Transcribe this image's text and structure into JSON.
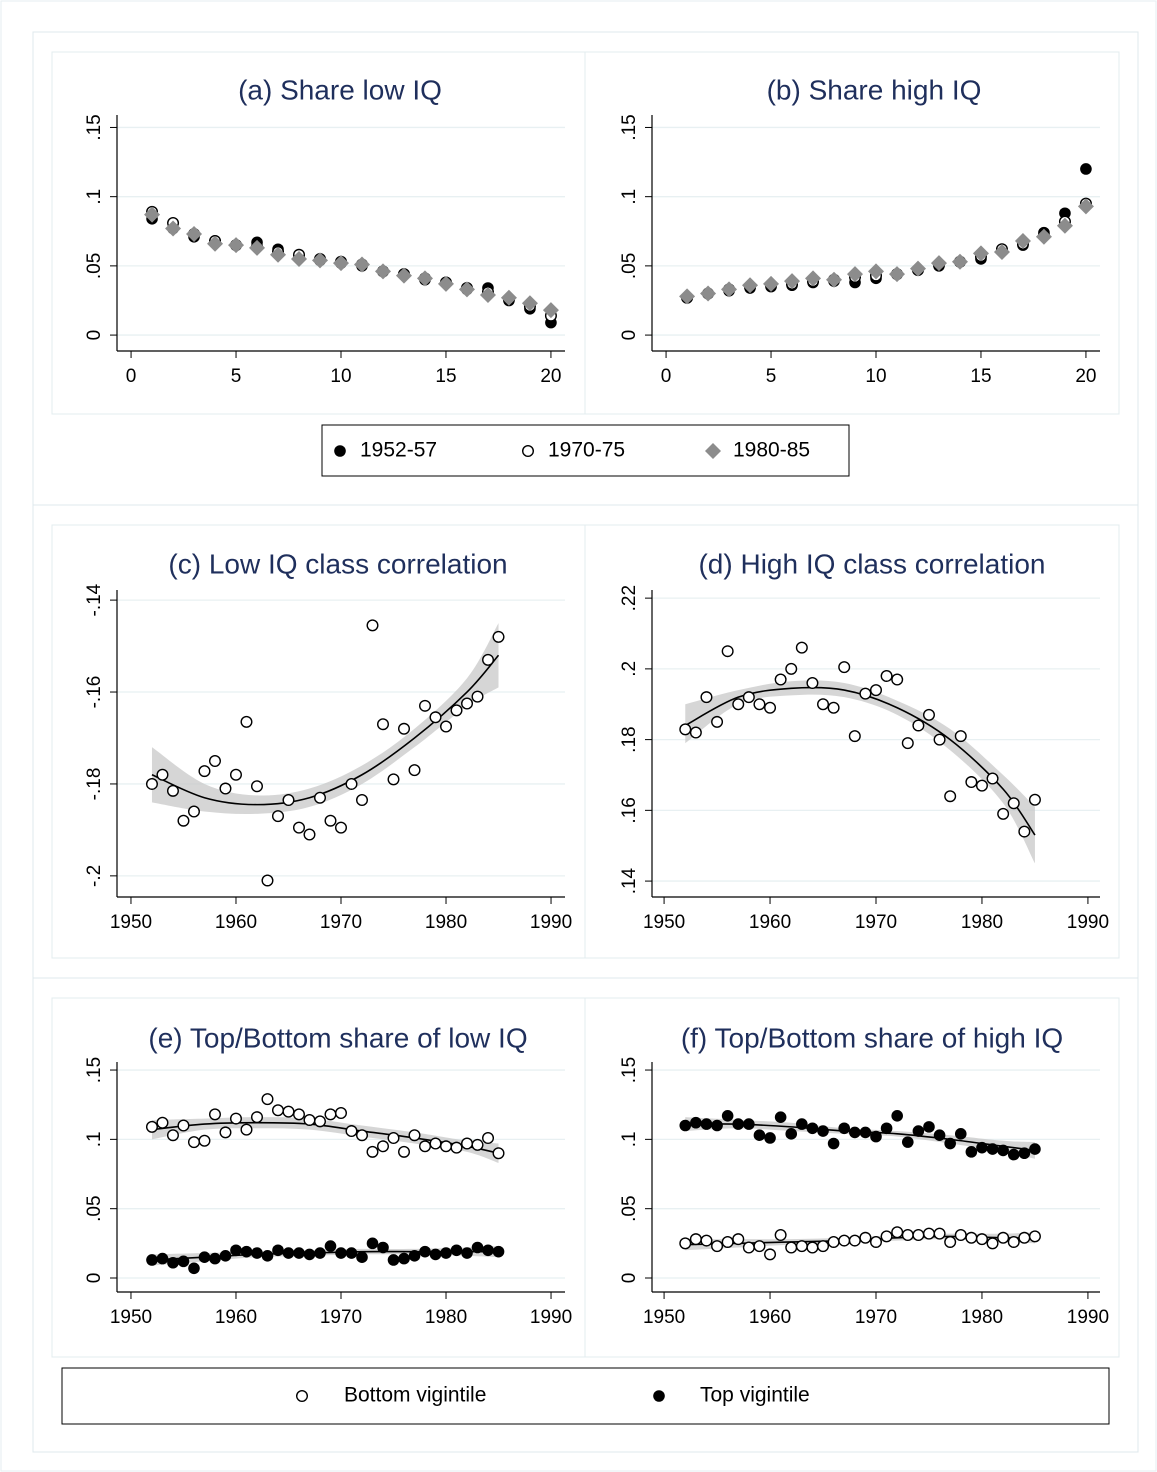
{
  "chart_data": [
    {
      "type": "scatter",
      "title": "(a) Share low IQ",
      "x": [
        1,
        2,
        3,
        4,
        5,
        6,
        7,
        8,
        9,
        10,
        11,
        12,
        13,
        14,
        15,
        16,
        17,
        18,
        19,
        20
      ],
      "series": [
        {
          "name": "1952-57",
          "color": "#000000",
          "marker": "filled-circle",
          "values": [
            0.084,
            0.077,
            0.071,
            0.068,
            0.065,
            0.067,
            0.062,
            0.057,
            0.054,
            0.052,
            0.05,
            0.046,
            0.044,
            0.04,
            0.038,
            0.033,
            0.034,
            0.025,
            0.019,
            0.009
          ]
        },
        {
          "name": "1970-75",
          "color": "#000000",
          "marker": "hollow-circle",
          "values": [
            0.089,
            0.081,
            0.073,
            0.068,
            0.065,
            0.064,
            0.06,
            0.058,
            0.055,
            0.053,
            0.051,
            0.046,
            0.044,
            0.041,
            0.038,
            0.034,
            0.031,
            0.026,
            0.021,
            0.014
          ]
        },
        {
          "name": "1980-85",
          "color": "#8c8c8c",
          "marker": "diamond",
          "values": [
            0.087,
            0.077,
            0.073,
            0.066,
            0.065,
            0.063,
            0.058,
            0.055,
            0.054,
            0.052,
            0.051,
            0.046,
            0.043,
            0.041,
            0.037,
            0.033,
            0.029,
            0.027,
            0.023,
            0.018
          ]
        }
      ],
      "xlim": [
        -0.67,
        20.67
      ],
      "ylim": [
        -0.0115,
        0.159
      ],
      "xticks": [
        0,
        5,
        10,
        15,
        20
      ],
      "yticks": [
        0,
        {
          "value": 0.05,
          "label": ".05"
        },
        {
          "value": 0.1,
          "label": ".1"
        },
        {
          "value": 0.15,
          "label": ".15"
        }
      ],
      "grid": true
    },
    {
      "type": "scatter",
      "title": "(b) Share high IQ",
      "x": [
        1,
        2,
        3,
        4,
        5,
        6,
        7,
        8,
        9,
        10,
        11,
        12,
        13,
        14,
        15,
        16,
        17,
        18,
        19,
        20
      ],
      "series": [
        {
          "color": "#000000",
          "marker": "filled-circle",
          "values": [
            0.027,
            0.03,
            0.032,
            0.034,
            0.035,
            0.036,
            0.038,
            0.039,
            0.038,
            0.041,
            0.044,
            0.047,
            0.05,
            0.053,
            0.055,
            0.061,
            0.065,
            0.074,
            0.088,
            0.12
          ]
        },
        {
          "color": "#000000",
          "marker": "hollow-circle",
          "values": [
            0.027,
            0.03,
            0.033,
            0.035,
            0.036,
            0.037,
            0.039,
            0.04,
            0.042,
            0.043,
            0.044,
            0.047,
            0.051,
            0.053,
            0.057,
            0.062,
            0.066,
            0.072,
            0.082,
            0.095
          ]
        },
        {
          "color": "#8c8c8c",
          "marker": "diamond",
          "values": [
            0.028,
            0.03,
            0.033,
            0.036,
            0.037,
            0.039,
            0.041,
            0.04,
            0.044,
            0.046,
            0.044,
            0.048,
            0.052,
            0.053,
            0.059,
            0.06,
            0.068,
            0.071,
            0.079,
            0.093
          ]
        }
      ],
      "xlim": [
        -0.67,
        20.67
      ],
      "ylim": [
        -0.0115,
        0.159
      ],
      "xticks": [
        0,
        5,
        10,
        15,
        20
      ],
      "yticks": [
        0,
        {
          "value": 0.05,
          "label": ".05"
        },
        {
          "value": 0.1,
          "label": ".1"
        },
        {
          "value": 0.15,
          "label": ".15"
        }
      ],
      "grid": true
    },
    {
      "type": "scatter",
      "title": "(c) Low IQ class correlation",
      "x": [
        1952,
        1953,
        1954,
        1955,
        1956,
        1957,
        1958,
        1959,
        1960,
        1961,
        1962,
        1963,
        1964,
        1965,
        1966,
        1967,
        1968,
        1969,
        1970,
        1971,
        1972,
        1973,
        1974,
        1975,
        1976,
        1977,
        1978,
        1979,
        1980,
        1981,
        1982,
        1983,
        1984,
        1985
      ],
      "series": [
        {
          "color": "#000000",
          "marker": "hollow-circle",
          "values": [
            -0.18,
            -0.178,
            -0.1815,
            -0.188,
            -0.186,
            -0.1772,
            -0.175,
            -0.181,
            -0.178,
            -0.1665,
            -0.1805,
            -0.201,
            -0.187,
            -0.1835,
            -0.1895,
            -0.191,
            -0.183,
            -0.188,
            -0.1895,
            -0.18,
            -0.1835,
            -0.1455,
            -0.167,
            -0.179,
            -0.168,
            -0.177,
            -0.163,
            -0.1655,
            -0.1675,
            -0.164,
            -0.1625,
            -0.161,
            -0.153,
            -0.148
          ]
        }
      ],
      "fits": [
        {
          "x": [
            1952,
            1957,
            1962,
            1967,
            1972,
            1977,
            1982,
            1985
          ],
          "values": [
            -0.178,
            -0.183,
            -0.1845,
            -0.183,
            -0.178,
            -0.17,
            -0.16,
            -0.152
          ],
          "lower": [
            -0.184,
            -0.186,
            -0.1865,
            -0.185,
            -0.18,
            -0.172,
            -0.163,
            -0.159
          ],
          "upper": [
            -0.172,
            -0.18,
            -0.1825,
            -0.181,
            -0.176,
            -0.168,
            -0.157,
            -0.145
          ]
        }
      ],
      "xlim": [
        1948.67,
        1991.33
      ],
      "ylim": [
        -0.2046,
        -0.1378
      ],
      "xticks": [
        1950,
        1960,
        1970,
        1980,
        1990
      ],
      "yticks": [
        {
          "value": -0.2,
          "label": "-.2"
        },
        {
          "value": -0.18,
          "label": "-.18"
        },
        {
          "value": -0.16,
          "label": "-.16"
        },
        {
          "value": -0.14,
          "label": "-.14"
        }
      ],
      "grid": true
    },
    {
      "type": "scatter",
      "title": "(d) High IQ class correlation",
      "x": [
        1952,
        1953,
        1954,
        1955,
        1956,
        1957,
        1958,
        1959,
        1960,
        1961,
        1962,
        1963,
        1964,
        1965,
        1966,
        1967,
        1968,
        1969,
        1970,
        1971,
        1972,
        1973,
        1974,
        1975,
        1976,
        1977,
        1978,
        1979,
        1980,
        1981,
        1982,
        1983,
        1984,
        1985
      ],
      "series": [
        {
          "color": "#000000",
          "marker": "hollow-circle",
          "values": [
            0.1829,
            0.182,
            0.192,
            0.185,
            0.205,
            0.19,
            0.192,
            0.19,
            0.189,
            0.197,
            0.2,
            0.206,
            0.196,
            0.19,
            0.189,
            0.2005,
            0.181,
            0.193,
            0.194,
            0.198,
            0.197,
            0.179,
            0.184,
            0.187,
            0.18,
            0.164,
            0.181,
            0.168,
            0.167,
            0.169,
            0.159,
            0.162,
            0.154,
            0.163
          ]
        }
      ],
      "fits": [
        {
          "x": [
            1952,
            1957,
            1962,
            1967,
            1972,
            1977,
            1982,
            1985
          ],
          "values": [
            0.184,
            0.192,
            0.1945,
            0.194,
            0.189,
            0.18,
            0.166,
            0.153
          ],
          "lower": [
            0.179,
            0.19,
            0.1925,
            0.192,
            0.187,
            0.177,
            0.162,
            0.145
          ],
          "upper": [
            0.19,
            0.194,
            0.1965,
            0.196,
            0.191,
            0.183,
            0.17,
            0.161
          ]
        }
      ],
      "xlim": [
        1948.86,
        1991.14
      ],
      "ylim": [
        0.1355,
        0.2223
      ],
      "xticks": [
        1950,
        1960,
        1970,
        1980,
        1990
      ],
      "yticks": [
        {
          "value": 0.14,
          "label": ".14"
        },
        {
          "value": 0.16,
          "label": ".16"
        },
        {
          "value": 0.18,
          "label": ".18"
        },
        {
          "value": 0.2,
          "label": ".2"
        },
        {
          "value": 0.22,
          "label": ".22"
        }
      ],
      "grid": true
    },
    {
      "type": "scatter",
      "title": "(e) Top/Bottom share of low IQ",
      "x": [
        1952,
        1953,
        1954,
        1955,
        1956,
        1957,
        1958,
        1959,
        1960,
        1961,
        1962,
        1963,
        1964,
        1965,
        1966,
        1967,
        1968,
        1969,
        1970,
        1971,
        1972,
        1973,
        1974,
        1975,
        1976,
        1977,
        1978,
        1979,
        1980,
        1981,
        1982,
        1983,
        1984,
        1985
      ],
      "series": [
        {
          "name": "Bottom vigintile",
          "color": "#000000",
          "marker": "hollow-circle",
          "values": [
            0.109,
            0.112,
            0.103,
            0.11,
            0.098,
            0.099,
            0.118,
            0.105,
            0.115,
            0.107,
            0.116,
            0.129,
            0.121,
            0.12,
            0.118,
            0.114,
            0.113,
            0.118,
            0.119,
            0.106,
            0.103,
            0.091,
            0.095,
            0.101,
            0.091,
            0.103,
            0.095,
            0.097,
            0.095,
            0.094,
            0.097,
            0.096,
            0.101,
            0.09
          ]
        },
        {
          "name": "Top vigintile",
          "color": "#000000",
          "marker": "filled-circle",
          "values": [
            0.013,
            0.014,
            0.011,
            0.012,
            0.007,
            0.015,
            0.014,
            0.016,
            0.02,
            0.019,
            0.018,
            0.016,
            0.02,
            0.018,
            0.018,
            0.017,
            0.018,
            0.023,
            0.018,
            0.018,
            0.015,
            0.025,
            0.022,
            0.013,
            0.014,
            0.016,
            0.019,
            0.017,
            0.018,
            0.02,
            0.018,
            0.022,
            0.02,
            0.019
          ]
        }
      ],
      "fits": [
        {
          "x": [
            1952,
            1957,
            1962,
            1967,
            1972,
            1977,
            1982,
            1985
          ],
          "values": [
            0.107,
            0.111,
            0.112,
            0.111,
            0.106,
            0.101,
            0.095,
            0.09
          ],
          "lower": [
            0.1,
            0.107,
            0.108,
            0.107,
            0.102,
            0.097,
            0.091,
            0.083
          ],
          "upper": [
            0.114,
            0.115,
            0.116,
            0.115,
            0.11,
            0.105,
            0.099,
            0.097
          ]
        },
        {
          "x": [
            1952,
            1957,
            1962,
            1967,
            1972,
            1977,
            1982,
            1985
          ],
          "values": [
            0.013,
            0.015,
            0.017,
            0.018,
            0.019,
            0.019,
            0.019,
            0.019
          ],
          "lower": [
            0.009,
            0.012,
            0.015,
            0.016,
            0.017,
            0.017,
            0.016,
            0.015
          ],
          "upper": [
            0.017,
            0.018,
            0.019,
            0.02,
            0.021,
            0.021,
            0.022,
            0.023
          ]
        }
      ],
      "xlim": [
        1948.67,
        1991.33
      ],
      "ylim": [
        -0.0101,
        0.1558
      ],
      "xticks": [
        1950,
        1960,
        1970,
        1980,
        1990
      ],
      "yticks": [
        0,
        {
          "value": 0.05,
          "label": ".05"
        },
        {
          "value": 0.1,
          "label": ".1"
        },
        {
          "value": 0.15,
          "label": ".15"
        }
      ],
      "grid": true
    },
    {
      "type": "scatter",
      "title": "(f) Top/Bottom share of high IQ",
      "x": [
        1952,
        1953,
        1954,
        1955,
        1956,
        1957,
        1958,
        1959,
        1960,
        1961,
        1962,
        1963,
        1964,
        1965,
        1966,
        1967,
        1968,
        1969,
        1970,
        1971,
        1972,
        1973,
        1974,
        1975,
        1976,
        1977,
        1978,
        1979,
        1980,
        1981,
        1982,
        1983,
        1984,
        1985
      ],
      "series": [
        {
          "color": "#000000",
          "marker": "hollow-circle",
          "values": [
            0.025,
            0.028,
            0.027,
            0.023,
            0.026,
            0.028,
            0.022,
            0.023,
            0.017,
            0.031,
            0.022,
            0.023,
            0.022,
            0.023,
            0.026,
            0.027,
            0.027,
            0.029,
            0.026,
            0.03,
            0.033,
            0.031,
            0.031,
            0.032,
            0.032,
            0.026,
            0.031,
            0.029,
            0.028,
            0.025,
            0.029,
            0.026,
            0.029,
            0.03
          ]
        },
        {
          "color": "#000000",
          "marker": "filled-circle",
          "values": [
            0.11,
            0.112,
            0.111,
            0.11,
            0.117,
            0.111,
            0.111,
            0.103,
            0.101,
            0.116,
            0.104,
            0.111,
            0.108,
            0.106,
            0.097,
            0.108,
            0.105,
            0.105,
            0.102,
            0.108,
            0.117,
            0.098,
            0.106,
            0.109,
            0.103,
            0.097,
            0.104,
            0.091,
            0.094,
            0.093,
            0.092,
            0.089,
            0.09,
            0.093
          ]
        }
      ],
      "fits": [
        {
          "x": [
            1952,
            1957,
            1962,
            1967,
            1972,
            1977,
            1982,
            1985
          ],
          "values": [
            0.024,
            0.025,
            0.026,
            0.027,
            0.029,
            0.03,
            0.029,
            0.029
          ],
          "lower": [
            0.02,
            0.022,
            0.024,
            0.025,
            0.027,
            0.028,
            0.026,
            0.025
          ],
          "upper": [
            0.028,
            0.028,
            0.028,
            0.029,
            0.031,
            0.032,
            0.032,
            0.033
          ]
        },
        {
          "x": [
            1952,
            1957,
            1962,
            1967,
            1972,
            1977,
            1982,
            1985
          ],
          "values": [
            0.111,
            0.111,
            0.109,
            0.106,
            0.104,
            0.1,
            0.095,
            0.092
          ],
          "lower": [
            0.106,
            0.108,
            0.106,
            0.104,
            0.102,
            0.097,
            0.091,
            0.086
          ],
          "upper": [
            0.116,
            0.114,
            0.112,
            0.108,
            0.106,
            0.103,
            0.099,
            0.098
          ]
        }
      ],
      "xlim": [
        1948.86,
        1991.14
      ],
      "ylim": [
        -0.0101,
        0.1558
      ],
      "xticks": [
        1950,
        1960,
        1970,
        1980,
        1990
      ],
      "yticks": [
        0,
        {
          "value": 0.05,
          "label": ".05"
        },
        {
          "value": 0.1,
          "label": ".1"
        },
        {
          "value": 0.15,
          "label": ".15"
        }
      ],
      "grid": true
    }
  ]
}
